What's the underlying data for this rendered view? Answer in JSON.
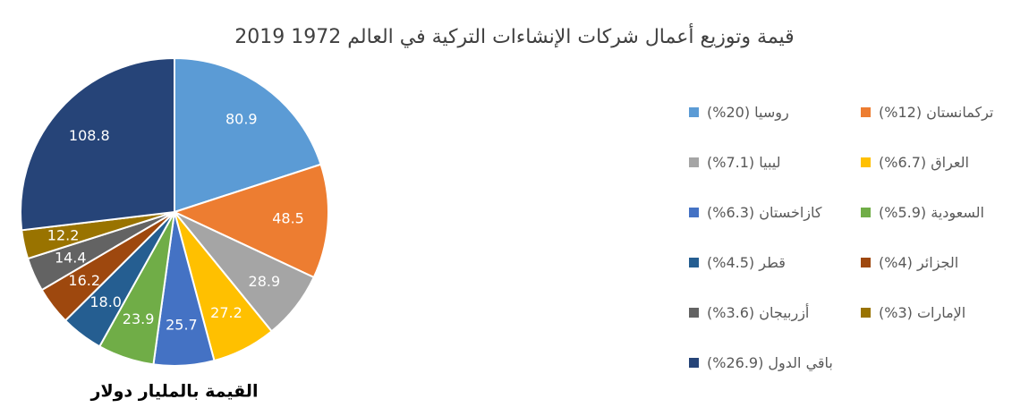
{
  "chart_data": {
    "type": "pie",
    "title": "قيمة وتوزيع أعمال شركات الإنشاءات التركية في العالم 1972 2019",
    "annotation": "القيمة بالمليار دولار",
    "categories": [
      "روسيا (20%)",
      "تركمانستان (12%)",
      "ليبيا (7.1%)",
      "العراق (6.7%)",
      "كازاخستان (6.3%)",
      "السعودية (5.9%)",
      "قطر (4.5%)",
      "الجزائر (4%)",
      "أزربيجان (3.6%)",
      "الإمارات (3%)",
      "باقي الدول (26.9%)"
    ],
    "values": [
      80.9,
      48.5,
      28.9,
      27.2,
      25.7,
      23.9,
      18.0,
      16.2,
      14.4,
      12.2,
      108.8
    ],
    "value_labels": [
      "80.9",
      "48.5",
      "28.9",
      "27.2",
      "25.7",
      "23.9",
      "18.0",
      "16.2",
      "14.4",
      "12.2",
      "108.8"
    ],
    "colors": [
      "#5b9bd5",
      "#ed7d31",
      "#a5a5a5",
      "#ffc000",
      "#4472c4",
      "#70ad47",
      "#255e91",
      "#9e480e",
      "#636363",
      "#997300",
      "#264478"
    ]
  }
}
